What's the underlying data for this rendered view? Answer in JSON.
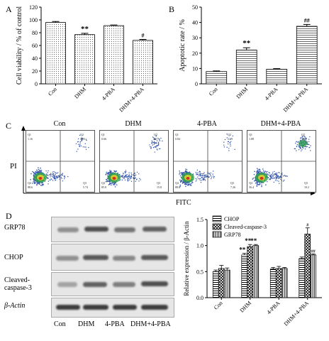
{
  "panel_labels": {
    "a": "A",
    "b": "B",
    "c": "C",
    "d": "D"
  },
  "panel_c": {
    "axis_y": "PI",
    "axis_x": "FITC",
    "plots": [
      {
        "title": "Con",
        "q1": "1.16",
        "q2": "3.83",
        "q4": "88.6",
        "q3": "5.74"
      },
      {
        "title": "DHM",
        "q1": "0.66",
        "q2": "6.77",
        "q4": "85.8",
        "q3": "15.8"
      },
      {
        "title": "4-PBA",
        "q1": "0.84",
        "q2": "2.19",
        "q4": "88.6",
        "q3": "7.26"
      },
      {
        "title": "DHM+4-PBA",
        "q1": "1.88",
        "q2": "34.3",
        "q4": "56.4",
        "q3": "10.2"
      }
    ]
  },
  "panel_d_blot": {
    "rows": [
      {
        "label": "GRP78"
      },
      {
        "label": "CHOP"
      },
      {
        "label": "Cleaved-caspase-3"
      },
      {
        "label": "β-Actin"
      }
    ],
    "lanes": [
      "Con",
      "DHM",
      "4-PBA",
      "DHM+4-PBA"
    ]
  },
  "chart_data": [
    {
      "type": "bar",
      "id": "A",
      "categories": [
        "Con",
        "DHM",
        "4-PBA",
        "DHM+4-PBA"
      ],
      "values": [
        96,
        77,
        91,
        68
      ],
      "errors": [
        1.5,
        2,
        1,
        1.5
      ],
      "annotations": [
        "",
        "**",
        "",
        "#"
      ],
      "ylabel": "Cell viability / % of control",
      "ylim": [
        0,
        120
      ],
      "yticks": [
        0,
        20,
        40,
        60,
        80,
        100,
        120
      ],
      "colors": [
        "#e8e8e8",
        "#d8d8d8",
        "#ececec",
        "#d4d4d4"
      ]
    },
    {
      "type": "bar",
      "id": "B",
      "categories": [
        "Con",
        "DHM",
        "4-PBA",
        "DHM+4-PBA"
      ],
      "values": [
        8,
        22,
        9.5,
        37.5
      ],
      "errors": [
        0.4,
        1.5,
        0.4,
        1.2
      ],
      "annotations": [
        "",
        "**",
        "",
        "##"
      ],
      "ylabel": "Apoptotic rate / %",
      "ylim": [
        0,
        50
      ],
      "yticks": [
        0,
        10,
        20,
        30,
        40,
        50
      ],
      "colors": [
        "#bbbbbb",
        "#9a9a9a",
        "#c2c2c2",
        "#8a8a8a"
      ]
    },
    {
      "type": "bar",
      "id": "D",
      "categories": [
        "Con",
        "DHM",
        "4-PBA",
        "DHM+4-PBA"
      ],
      "series": [
        {
          "name": "CHOP",
          "values": [
            0.5,
            0.82,
            0.55,
            0.75
          ],
          "errors": [
            0.03,
            0.03,
            0.03,
            0.03
          ],
          "annotations": [
            "",
            "**",
            "",
            ""
          ]
        },
        {
          "name": "Cleaved-caspase-3",
          "values": [
            0.56,
            0.98,
            0.56,
            1.22
          ],
          "errors": [
            0.06,
            0.04,
            0.04,
            0.12
          ],
          "annotations": [
            "",
            "**",
            "",
            "#"
          ]
        },
        {
          "name": "GRP78",
          "values": [
            0.53,
            1.0,
            0.56,
            0.82
          ],
          "errors": [
            0.04,
            0.02,
            0.02,
            0.02
          ],
          "annotations": [
            "",
            "**",
            "",
            "##"
          ]
        }
      ],
      "ylabel": "Relative expression / β-Actin",
      "ylim": [
        0,
        1.5
      ],
      "yticks": [
        "0.0",
        "0.5",
        "1.0",
        "1.5"
      ],
      "legend": "top-left"
    }
  ]
}
